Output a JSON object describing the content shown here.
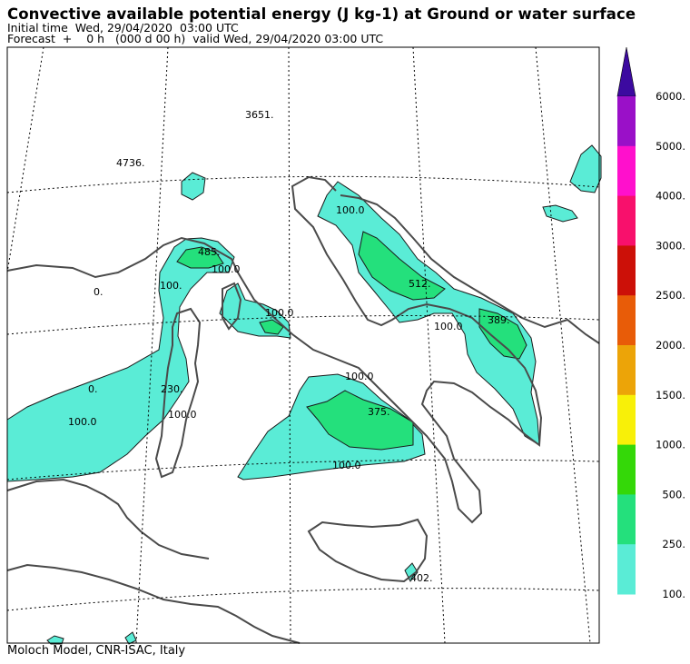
{
  "header": {
    "title": "Convective available potential energy (J kg-1) at Ground or water surface",
    "initial_time": "Initial time  Wed, 29/04/2020  03:00 UTC",
    "forecast": "Forecast  +    0 h   (000 d 00 h)  valid Wed, 29/04/2020 03:00 UTC"
  },
  "footer": "Moloch Model, CNR-ISAC, Italy",
  "map_labels": [
    {
      "id": "label-3651",
      "text": "3651."
    },
    {
      "id": "label-4736",
      "text": "4736."
    },
    {
      "id": "label-485",
      "text": "485."
    },
    {
      "id": "label-100-a",
      "text": "100.0"
    },
    {
      "id": "label-100-b",
      "text": "100.0"
    },
    {
      "id": "label-0-a",
      "text": "0."
    },
    {
      "id": "label-0-b",
      "text": "0."
    },
    {
      "id": "label-100-c",
      "text": "100."
    },
    {
      "id": "label-230",
      "text": "230."
    },
    {
      "id": "label-100-d",
      "text": "100.0"
    },
    {
      "id": "label-100-e",
      "text": "100.0"
    },
    {
      "id": "label-100-f",
      "text": "100.0"
    },
    {
      "id": "label-512",
      "text": "512."
    },
    {
      "id": "label-389",
      "text": "389."
    },
    {
      "id": "label-100-g",
      "text": "100.0"
    },
    {
      "id": "label-375",
      "text": "375."
    },
    {
      "id": "label-100-h",
      "text": "100.0"
    },
    {
      "id": "label-402",
      "text": "402."
    },
    {
      "id": "label-100-i",
      "text": "100.0"
    }
  ],
  "colorbar": {
    "levels": [
      "6000.",
      "5000.",
      "4000.",
      "3000.",
      "2500.",
      "2000.",
      "1500.",
      "1000.",
      "500.",
      "250.",
      "100."
    ],
    "colors": [
      "#9a10c8",
      "#ff10cc",
      "#f8106c",
      "#cc1008",
      "#e85c08",
      "#eca408",
      "#f8f008",
      "#34d808",
      "#24e07c",
      "#5aecd6"
    ],
    "arrow_color": "#3c0aa0"
  },
  "colors": {
    "fill_low": "#5aecd6",
    "fill_mid": "#24e07c",
    "coast": "#4a4a4a"
  }
}
